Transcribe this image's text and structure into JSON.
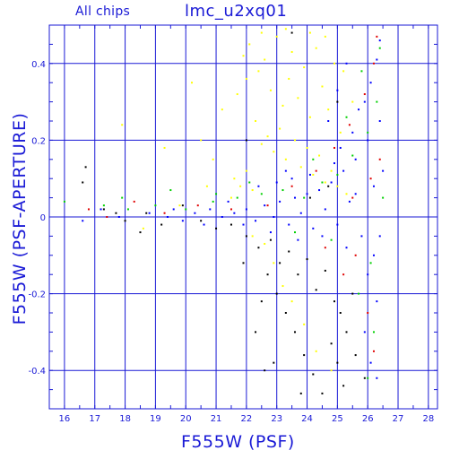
{
  "header": {
    "left_title": "All chips",
    "title": "lmc_u2xq01"
  },
  "chart_data": {
    "type": "scatter",
    "title": "lmc_u2xq01",
    "subtitle": "All chips",
    "xlabel": "F555W (PSF)",
    "ylabel": "F555W (PSF-APERTURE)",
    "xlim": [
      15.5,
      28.3
    ],
    "ylim": [
      -0.5,
      0.5
    ],
    "x_ticks": [
      16,
      17,
      18,
      19,
      20,
      21,
      22,
      23,
      24,
      25,
      26,
      27,
      28
    ],
    "y_ticks": [
      -0.4,
      -0.2,
      0,
      0.2,
      0.4
    ],
    "y_tick_labels": [
      "-0.4",
      "-0.2",
      "0",
      "0.2",
      "0.4"
    ],
    "grid": true,
    "grid_color": "#1a1ad6",
    "axis_color": "#1a1ad6",
    "series": [
      {
        "color": "#ffff00",
        "points": [
          [
            22.1,
            0.45
          ],
          [
            22.4,
            0.38
          ],
          [
            22.6,
            0.41
          ],
          [
            22.8,
            0.33
          ],
          [
            23.0,
            0.47
          ],
          [
            23.2,
            0.29
          ],
          [
            23.4,
            0.36
          ],
          [
            23.5,
            0.43
          ],
          [
            23.7,
            0.31
          ],
          [
            23.9,
            0.39
          ],
          [
            24.1,
            0.26
          ],
          [
            24.3,
            0.44
          ],
          [
            24.5,
            0.34
          ],
          [
            24.7,
            0.28
          ],
          [
            24.9,
            0.4
          ],
          [
            25.1,
            0.22
          ],
          [
            22.3,
            0.25
          ],
          [
            22.5,
            0.19
          ],
          [
            22.7,
            0.21
          ],
          [
            22.9,
            0.17
          ],
          [
            23.1,
            0.23
          ],
          [
            23.3,
            0.15
          ],
          [
            23.6,
            0.2
          ],
          [
            23.8,
            0.13
          ],
          [
            24.0,
            0.18
          ],
          [
            24.2,
            0.11
          ],
          [
            24.4,
            0.16
          ],
          [
            24.6,
            0.09
          ],
          [
            24.8,
            0.12
          ],
          [
            25.0,
            0.08
          ],
          [
            25.3,
            0.06
          ],
          [
            22.0,
            0.12
          ],
          [
            21.8,
            0.08
          ],
          [
            21.6,
            0.1
          ],
          [
            21.5,
            0.05
          ],
          [
            22.2,
            0.07
          ],
          [
            20.5,
            0.2
          ],
          [
            20.9,
            0.15
          ],
          [
            21.2,
            0.28
          ],
          [
            21.7,
            0.32
          ],
          [
            22.0,
            0.36
          ],
          [
            21.9,
            0.42
          ],
          [
            22.5,
            0.48
          ],
          [
            23.3,
            0.49
          ],
          [
            24.1,
            0.48
          ],
          [
            24.6,
            0.47
          ],
          [
            25.2,
            0.38
          ],
          [
            25.5,
            0.3
          ],
          [
            22.6,
            -0.07
          ],
          [
            22.9,
            -0.12
          ],
          [
            23.2,
            -0.18
          ],
          [
            23.5,
            -0.22
          ],
          [
            23.9,
            -0.28
          ],
          [
            24.3,
            -0.35
          ],
          [
            22.2,
            -0.05
          ],
          [
            24.8,
            -0.4
          ],
          [
            19.8,
            0.03
          ],
          [
            19.3,
            0.18
          ],
          [
            20.2,
            0.35
          ],
          [
            17.9,
            0.24
          ],
          [
            18.6,
            -0.03
          ],
          [
            20.7,
            0.08
          ]
        ]
      },
      {
        "color": "#0000ff",
        "points": [
          [
            18.8,
            0.01
          ],
          [
            19.4,
            0.0
          ],
          [
            19.9,
            -0.01
          ],
          [
            20.3,
            0.01
          ],
          [
            20.8,
            0.02
          ],
          [
            21.2,
            0.0
          ],
          [
            21.6,
            0.01
          ],
          [
            22.0,
            0.02
          ],
          [
            22.3,
            -0.01
          ],
          [
            22.6,
            0.03
          ],
          [
            22.9,
            0.0
          ],
          [
            23.1,
            0.04
          ],
          [
            23.4,
            -0.02
          ],
          [
            23.6,
            0.05
          ],
          [
            23.8,
            0.01
          ],
          [
            24.0,
            0.06
          ],
          [
            24.2,
            -0.03
          ],
          [
            24.4,
            0.07
          ],
          [
            24.6,
            0.02
          ],
          [
            24.8,
            0.09
          ],
          [
            25.0,
            -0.02
          ],
          [
            25.2,
            0.12
          ],
          [
            25.4,
            0.04
          ],
          [
            25.6,
            0.15
          ],
          [
            25.8,
            -0.05
          ],
          [
            26.0,
            0.2
          ],
          [
            26.2,
            0.08
          ],
          [
            26.4,
            0.25
          ],
          [
            25.9,
            0.3
          ],
          [
            26.1,
            0.35
          ],
          [
            26.3,
            0.41
          ],
          [
            26.4,
            0.46
          ],
          [
            25.7,
            0.28
          ],
          [
            25.5,
            0.22
          ],
          [
            26.2,
            -0.1
          ],
          [
            26.0,
            -0.15
          ],
          [
            26.3,
            -0.22
          ],
          [
            25.9,
            -0.3
          ],
          [
            26.1,
            -0.38
          ],
          [
            26.3,
            -0.42
          ],
          [
            23.5,
            0.1
          ],
          [
            23.7,
            -0.06
          ],
          [
            24.1,
            0.11
          ],
          [
            24.5,
            -0.05
          ],
          [
            24.9,
            0.14
          ],
          [
            25.1,
            0.18
          ],
          [
            25.3,
            -0.08
          ],
          [
            25.6,
            0.06
          ],
          [
            22.4,
            0.08
          ],
          [
            22.8,
            -0.04
          ],
          [
            23.0,
            0.09
          ],
          [
            23.3,
            0.12
          ],
          [
            21.9,
            -0.02
          ],
          [
            21.4,
            0.04
          ],
          [
            20.6,
            -0.02
          ],
          [
            19.6,
            0.02
          ],
          [
            25.0,
            0.33
          ],
          [
            25.3,
            0.4
          ],
          [
            24.7,
            0.25
          ],
          [
            26.5,
            0.12
          ],
          [
            26.4,
            -0.05
          ],
          [
            16.6,
            -0.01
          ],
          [
            17.2,
            0.02
          ],
          [
            17.8,
            0.0
          ]
        ]
      },
      {
        "color": "#00d000",
        "points": [
          [
            16.0,
            0.04
          ],
          [
            17.3,
            0.03
          ],
          [
            18.1,
            0.02
          ],
          [
            19.0,
            0.03
          ],
          [
            20.0,
            0.02
          ],
          [
            20.9,
            0.04
          ],
          [
            21.7,
            0.05
          ],
          [
            22.5,
            0.06
          ],
          [
            23.2,
            0.07
          ],
          [
            23.9,
            0.05
          ],
          [
            24.5,
            0.09
          ],
          [
            25.0,
            0.11
          ],
          [
            25.5,
            0.16
          ],
          [
            26.0,
            0.22
          ],
          [
            26.3,
            0.3
          ],
          [
            26.4,
            0.44
          ],
          [
            25.8,
            0.38
          ],
          [
            26.1,
            -0.12
          ],
          [
            25.7,
            -0.2
          ],
          [
            26.2,
            -0.3
          ],
          [
            24.8,
            -0.06
          ],
          [
            23.6,
            -0.04
          ],
          [
            22.1,
            0.09
          ],
          [
            24.2,
            0.15
          ],
          [
            25.3,
            0.26
          ],
          [
            26.5,
            0.05
          ],
          [
            26.0,
            -0.42
          ],
          [
            17.9,
            0.05
          ],
          [
            19.5,
            0.07
          ],
          [
            21.0,
            0.06
          ]
        ]
      },
      {
        "color": "#e00000",
        "points": [
          [
            16.8,
            0.02
          ],
          [
            17.4,
            0.0
          ],
          [
            18.3,
            0.04
          ],
          [
            19.3,
            0.01
          ],
          [
            20.4,
            0.03
          ],
          [
            21.5,
            0.02
          ],
          [
            22.7,
            0.03
          ],
          [
            23.5,
            0.08
          ],
          [
            24.3,
            0.12
          ],
          [
            24.9,
            0.18
          ],
          [
            25.4,
            0.24
          ],
          [
            25.9,
            0.32
          ],
          [
            26.2,
            0.4
          ],
          [
            26.3,
            0.47
          ],
          [
            25.6,
            -0.1
          ],
          [
            26.0,
            -0.25
          ],
          [
            26.2,
            -0.35
          ],
          [
            25.2,
            -0.15
          ],
          [
            24.6,
            -0.08
          ],
          [
            26.4,
            0.15
          ],
          [
            25.5,
            0.05
          ],
          [
            26.1,
            0.1
          ]
        ]
      },
      {
        "color": "#000000",
        "points": [
          [
            16.7,
            0.13
          ],
          [
            17.3,
            0.02
          ],
          [
            18.0,
            -0.01
          ],
          [
            18.7,
            0.01
          ],
          [
            19.2,
            -0.02
          ],
          [
            19.9,
            0.03
          ],
          [
            20.5,
            -0.01
          ],
          [
            21.0,
            -0.03
          ],
          [
            21.5,
            -0.02
          ],
          [
            22.0,
            -0.05
          ],
          [
            22.4,
            -0.08
          ],
          [
            22.8,
            -0.06
          ],
          [
            23.1,
            -0.12
          ],
          [
            23.4,
            -0.09
          ],
          [
            23.7,
            -0.15
          ],
          [
            24.0,
            -0.11
          ],
          [
            24.3,
            -0.19
          ],
          [
            24.6,
            -0.14
          ],
          [
            24.9,
            -0.22
          ],
          [
            25.1,
            -0.25
          ],
          [
            25.3,
            -0.3
          ],
          [
            25.5,
            -0.2
          ],
          [
            23.0,
            -0.2
          ],
          [
            23.3,
            -0.25
          ],
          [
            23.6,
            -0.3
          ],
          [
            23.9,
            -0.36
          ],
          [
            24.2,
            -0.41
          ],
          [
            24.5,
            -0.46
          ],
          [
            22.7,
            -0.15
          ],
          [
            22.5,
            -0.22
          ],
          [
            24.8,
            -0.33
          ],
          [
            25.0,
            -0.38
          ],
          [
            25.2,
            -0.44
          ],
          [
            23.8,
            -0.46
          ],
          [
            22.9,
            -0.38
          ],
          [
            22.3,
            -0.3
          ],
          [
            21.9,
            -0.12
          ],
          [
            22.6,
            -0.4
          ],
          [
            25.6,
            -0.36
          ],
          [
            25.9,
            -0.42
          ],
          [
            24.1,
            0.05
          ],
          [
            24.7,
            0.08
          ],
          [
            25.0,
            0.3
          ],
          [
            23.5,
            0.48
          ],
          [
            22.0,
            0.2
          ],
          [
            18.5,
            -0.04
          ],
          [
            17.7,
            0.01
          ],
          [
            16.6,
            0.09
          ]
        ]
      }
    ]
  }
}
